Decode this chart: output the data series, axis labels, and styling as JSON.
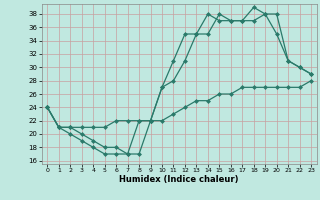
{
  "xlabel": "Humidex (Indice chaleur)",
  "bg_color": "#c0e8e0",
  "line_color": "#2a7a6a",
  "xlim": [
    -0.5,
    23.5
  ],
  "ylim": [
    15.5,
    39.5
  ],
  "xticks": [
    0,
    1,
    2,
    3,
    4,
    5,
    6,
    7,
    8,
    9,
    10,
    11,
    12,
    13,
    14,
    15,
    16,
    17,
    18,
    19,
    20,
    21,
    22,
    23
  ],
  "yticks": [
    16,
    18,
    20,
    22,
    24,
    26,
    28,
    30,
    32,
    34,
    36,
    38
  ],
  "line1_x": [
    0,
    1,
    2,
    3,
    4,
    5,
    6,
    7,
    8,
    9,
    10,
    11,
    12,
    13,
    14,
    15,
    16,
    17,
    18,
    19,
    20,
    21,
    22,
    23
  ],
  "line1_y": [
    24,
    21,
    21,
    20,
    19,
    18,
    18,
    17,
    17,
    22,
    27,
    31,
    35,
    35,
    38,
    37,
    37,
    37,
    39,
    38,
    38,
    31,
    30,
    29
  ],
  "line2_x": [
    0,
    1,
    2,
    3,
    4,
    5,
    6,
    7,
    8,
    9,
    10,
    11,
    12,
    13,
    14,
    15,
    16,
    17,
    18,
    19,
    20,
    21,
    22,
    23
  ],
  "line2_y": [
    24,
    21,
    20,
    19,
    18,
    17,
    17,
    17,
    22,
    22,
    27,
    28,
    31,
    35,
    35,
    38,
    37,
    37,
    37,
    38,
    35,
    31,
    30,
    29
  ],
  "line3_x": [
    0,
    1,
    2,
    3,
    4,
    5,
    6,
    7,
    8,
    9,
    10,
    11,
    12,
    13,
    14,
    15,
    16,
    17,
    18,
    19,
    20,
    21,
    22,
    23
  ],
  "line3_y": [
    24,
    21,
    21,
    21,
    21,
    21,
    22,
    22,
    22,
    22,
    22,
    23,
    24,
    25,
    25,
    26,
    26,
    27,
    27,
    27,
    27,
    27,
    27,
    28
  ],
  "grid_color": "#c8a0a0",
  "markersize": 2.5,
  "linewidth": 0.9
}
